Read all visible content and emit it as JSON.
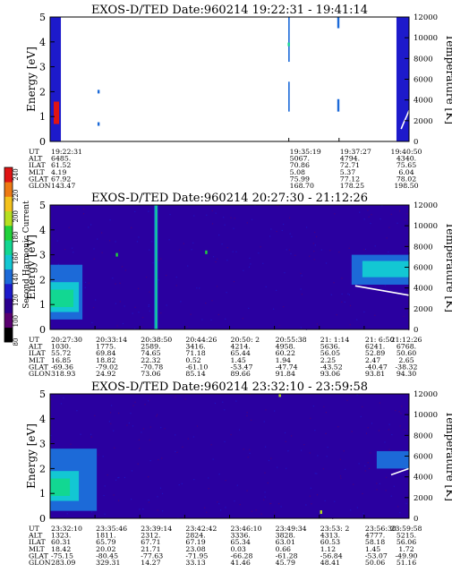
{
  "colorbar": {
    "label": "Second Harmonic Current",
    "ticks": [
      "80",
      "100",
      "120",
      "140",
      "160",
      "180",
      "200",
      "220",
      "240"
    ],
    "colors": [
      "#000000",
      "#5a0070",
      "#2b008f",
      "#1d1acb",
      "#1c6ad8",
      "#13c7d3",
      "#12d792",
      "#20d23a",
      "#b6df20",
      "#f3c21d",
      "#ee7a14",
      "#e01414"
    ]
  },
  "chart_data": [
    {
      "type": "heatmap",
      "title": "EXOS-D/TED   Date:960214  19:22:31 - 19:41:14",
      "ylabel": "Energy [eV]",
      "y2label": "Temperature [K]",
      "ylim": [
        0,
        5
      ],
      "yticks": [
        "0",
        "1",
        "2",
        "3",
        "4",
        "5"
      ],
      "y2lim": [
        0,
        12000
      ],
      "y2ticks": [
        "0",
        "2000",
        "4000",
        "6000",
        "8000",
        "10000",
        "12000"
      ],
      "background": "#ffffff",
      "orbit_rows": [
        "UT",
        "ALT",
        "ILAT",
        "MLT",
        "GLAT",
        "GLON"
      ],
      "orbit_columns": [
        {
          "frac": 0.0,
          "values": [
            "19:22:31",
            "6485.",
            "61.52",
            "4.19",
            "67.92",
            "143.47"
          ]
        },
        {
          "frac": 0.665,
          "values": [
            "19:35:19",
            "5067.",
            "70.86",
            "5.08",
            "75.99",
            "168.70"
          ]
        },
        {
          "frac": 0.805,
          "values": [
            "19:37:27",
            "4794.",
            "72.71",
            "5.37",
            "77.12",
            "178.25"
          ]
        },
        {
          "frac": 1.0,
          "values": [
            "19:40:50",
            "4340.",
            "75.65",
            "6.04",
            "78.02",
            "198.50"
          ]
        }
      ],
      "data_blocks": [
        {
          "t0": 0.0,
          "t1": 0.03,
          "e0": 0.0,
          "e1": 5.0,
          "level": 3
        },
        {
          "t0": 0.01,
          "t1": 0.025,
          "e0": 0.7,
          "e1": 1.6,
          "level": 14
        },
        {
          "t0": 0.6635,
          "t1": 0.6675,
          "e0": 3.2,
          "e1": 5.0,
          "level": 4
        },
        {
          "t0": 0.6635,
          "t1": 0.6675,
          "e0": 1.2,
          "e1": 2.4,
          "level": 4
        },
        {
          "t0": 0.8,
          "t1": 0.806,
          "e0": 4.55,
          "e1": 5.0,
          "level": 4
        },
        {
          "t0": 0.8,
          "t1": 0.806,
          "e0": 1.2,
          "e1": 1.7,
          "level": 4
        },
        {
          "t0": 0.965,
          "t1": 1.0,
          "e0": 0.0,
          "e1": 5.0,
          "level": 3
        }
      ],
      "points": [
        {
          "t": 0.665,
          "e": 3.9,
          "level": 6
        },
        {
          "t": 0.135,
          "e": 0.7,
          "level": 4
        },
        {
          "t": 0.135,
          "e": 2.0,
          "level": 4
        }
      ],
      "temperature": [
        {
          "t": 0.978,
          "k": 1200
        },
        {
          "t": 0.985,
          "k": 1800
        },
        {
          "t": 0.993,
          "k": 2400
        },
        {
          "t": 1.0,
          "k": 3000
        }
      ]
    },
    {
      "type": "heatmap",
      "title": "EXOS-D/TED   Date:960214  20:27:30 - 21:12:26",
      "ylabel": "Energy [eV]",
      "y2label": "Temperature [K]",
      "ylim": [
        0,
        5
      ],
      "yticks": [
        "0",
        "1",
        "2",
        "3",
        "4",
        "5"
      ],
      "y2lim": [
        0,
        12000
      ],
      "y2ticks": [
        "0",
        "2000",
        "4000",
        "6000",
        "8000",
        "10000",
        "12000"
      ],
      "background": "#2a00a0",
      "orbit_rows": [
        "UT",
        "ALT",
        "ILAT",
        "MLT",
        "GLAT",
        "GLON"
      ],
      "orbit_columns": [
        {
          "frac": 0.0,
          "values": [
            "20:27:30",
            "1030.",
            "55.72",
            "16.85",
            "-69.36",
            "318.93"
          ]
        },
        {
          "frac": 0.125,
          "values": [
            "20:33:14",
            "1775.",
            "69.84",
            "18.82",
            "-79.02",
            "24.92"
          ]
        },
        {
          "frac": 0.25,
          "values": [
            "20:38:50",
            "2589.",
            "74.65",
            "22.32",
            "-70.78",
            "73.06"
          ]
        },
        {
          "frac": 0.375,
          "values": [
            "20:44:26",
            "3416.",
            "71.18",
            "0.52",
            "-61.10",
            "85.14"
          ]
        },
        {
          "frac": 0.5,
          "values": [
            "20:50: 2",
            "4214.",
            "65.44",
            "1.45",
            "-53.47",
            "89.66"
          ]
        },
        {
          "frac": 0.625,
          "values": [
            "20:55:38",
            "4958.",
            "60.22",
            "1.94",
            "-47.74",
            "91.84"
          ]
        },
        {
          "frac": 0.75,
          "values": [
            "21: 1:14",
            "5636.",
            "56.05",
            "2.25",
            "-43.52",
            "93.06"
          ]
        },
        {
          "frac": 0.875,
          "values": [
            "21: 6:50",
            "6241.",
            "52.89",
            "2.47",
            "-40.47",
            "93.81"
          ]
        },
        {
          "frac": 1.0,
          "values": [
            "21:12:26",
            "6768.",
            "50.60",
            "2.65",
            "-38.32",
            "94.30"
          ]
        }
      ],
      "data_blocks": [
        {
          "t0": 0.0,
          "t1": 0.09,
          "e0": 0.4,
          "e1": 2.6,
          "level": 4
        },
        {
          "t0": 0.0,
          "t1": 0.08,
          "e0": 0.7,
          "e1": 1.9,
          "level": 5
        },
        {
          "t0": 0.0,
          "t1": 0.065,
          "e0": 0.9,
          "e1": 1.6,
          "level": 6
        },
        {
          "t0": 0.29,
          "t1": 0.3,
          "e0": 0.0,
          "e1": 5.0,
          "level": 4
        },
        {
          "t0": 0.293,
          "t1": 0.298,
          "e0": 0.0,
          "e1": 5.0,
          "level": 6
        },
        {
          "t0": 0.84,
          "t1": 1.0,
          "e0": 1.8,
          "e1": 3.0,
          "level": 4
        },
        {
          "t0": 0.87,
          "t1": 1.0,
          "e0": 2.1,
          "e1": 2.75,
          "level": 5
        }
      ],
      "points": [
        {
          "t": 0.186,
          "e": 3.0,
          "level": 7
        },
        {
          "t": 0.435,
          "e": 3.1,
          "level": 7
        }
      ],
      "temperature": [
        {
          "t": 0.85,
          "k": 4200
        },
        {
          "t": 0.9,
          "k": 3900
        },
        {
          "t": 0.95,
          "k": 3600
        },
        {
          "t": 1.0,
          "k": 3300
        }
      ]
    },
    {
      "type": "heatmap",
      "title": "EXOS-D/TED   Date:960214  23:32:10 - 23:59:58",
      "ylabel": "Energy [eV]",
      "y2label": "Temperature [K]",
      "ylim": [
        0,
        5
      ],
      "yticks": [
        "0",
        "1",
        "2",
        "3",
        "4",
        "5"
      ],
      "y2lim": [
        0,
        12000
      ],
      "y2ticks": [
        "0",
        "2000",
        "4000",
        "6000",
        "8000",
        "10000",
        "12000"
      ],
      "background": "#2a00a0",
      "orbit_rows": [
        "UT",
        "ALT",
        "ILAT",
        "MLT",
        "GLAT",
        "GLON"
      ],
      "orbit_columns": [
        {
          "frac": 0.0,
          "values": [
            "23:32:10",
            "1323.",
            "60.31",
            "18.42",
            "-75.15",
            "283.09"
          ]
        },
        {
          "frac": 0.125,
          "values": [
            "23:35:46",
            "1811.",
            "65.79",
            "20.02",
            "-80.45",
            "329.31"
          ]
        },
        {
          "frac": 0.25,
          "values": [
            "23:39:14",
            "2312.",
            "67.71",
            "21.71",
            "-77.63",
            "14.27"
          ]
        },
        {
          "frac": 0.375,
          "values": [
            "23:42:42",
            "2824.",
            "67.19",
            "23.08",
            "-71.95",
            "33.13"
          ]
        },
        {
          "frac": 0.5,
          "values": [
            "23:46:10",
            "3336.",
            "65.34",
            "0.03",
            "-66.28",
            "41.46"
          ]
        },
        {
          "frac": 0.625,
          "values": [
            "23:49:34",
            "3828.",
            "63.01",
            "0.66",
            "-61.28",
            "45.79"
          ]
        },
        {
          "frac": 0.75,
          "values": [
            "23:53: 2",
            "4313.",
            "60.53",
            "1.12",
            "-56.84",
            "48.41"
          ]
        },
        {
          "frac": 0.875,
          "values": [
            "23:56:30",
            "4777.",
            "58.18",
            "1.45",
            "-53.07",
            "50.06"
          ]
        },
        {
          "frac": 1.0,
          "values": [
            "23:59:58",
            "5215.",
            "56.06",
            "1.72",
            "-49.90",
            "51.16"
          ]
        }
      ],
      "data_blocks": [
        {
          "t0": 0.0,
          "t1": 0.13,
          "e0": 0.3,
          "e1": 2.8,
          "level": 4
        },
        {
          "t0": 0.0,
          "t1": 0.08,
          "e0": 0.7,
          "e1": 1.9,
          "level": 5
        },
        {
          "t0": 0.0,
          "t1": 0.055,
          "e0": 0.9,
          "e1": 1.6,
          "level": 6
        },
        {
          "t0": 0.91,
          "t1": 1.0,
          "e0": 2.0,
          "e1": 2.7,
          "level": 4
        }
      ],
      "points": [
        {
          "t": 0.755,
          "e": 0.25,
          "level": 8
        },
        {
          "t": 0.64,
          "e": 4.95,
          "level": 8
        }
      ],
      "temperature": [
        {
          "t": 0.95,
          "k": 4200
        },
        {
          "t": 0.975,
          "k": 4500
        },
        {
          "t": 1.0,
          "k": 4800
        }
      ]
    }
  ]
}
